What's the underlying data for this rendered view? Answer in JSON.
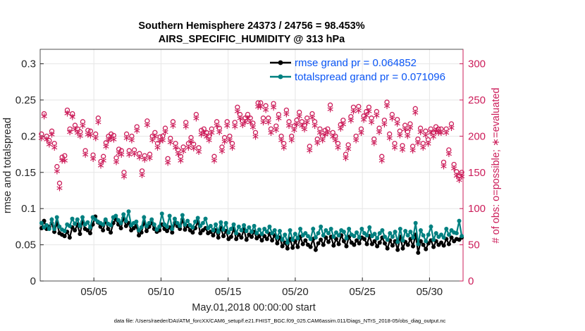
{
  "chart_data": {
    "type": "line",
    "title": "Southern Hemisphere 24373 / 24756 = 98.453%",
    "subtitle": "AIRS_SPECIFIC_HUMIDITY @ 313 hPa",
    "xlabel": "May.01,2018 00:00:00 start",
    "ylabel_left": "rmse and totalspread",
    "ylabel_right": "# of obs: o=possible; ∗=evaluated",
    "footnote": "data file: /Users/raeder/DAI/ATM_forcXX/CAM6_setup/f.e21.FHIST_BGC.f09_025.CAM6assim.011/Diags_NTrS_2018-05/obs_diag_output.nc",
    "xlim": [
      1.0,
      32.5
    ],
    "ylim_left": [
      0,
      0.32
    ],
    "ylim_right": [
      0,
      320
    ],
    "xticks": [
      5,
      10,
      15,
      20,
      25,
      30
    ],
    "xtick_labels": [
      "05/05",
      "05/10",
      "05/15",
      "05/20",
      "05/25",
      "05/30"
    ],
    "yticks_left": [
      0,
      0.05,
      0.1,
      0.15,
      0.2,
      0.25,
      0.3
    ],
    "ytick_labels_left": [
      "0",
      "0.05",
      "0.1",
      "0.15",
      "0.2",
      "0.25",
      "0.3"
    ],
    "yticks_right": [
      0,
      50,
      100,
      150,
      200,
      250,
      300
    ],
    "ytick_labels_right": [
      "0",
      "50",
      "100",
      "150",
      "200",
      "250",
      "300"
    ],
    "colors": {
      "rmse": "#000000",
      "spread": "#008080",
      "obs": "#cc1d5a",
      "legend_text": "#0b56f5",
      "grid": "#e6e6e6"
    },
    "grid": true,
    "legend_position": "top-right",
    "series": [
      {
        "name": "rmse grand pr = 0.064852",
        "style": "line-marker",
        "values": [
          0.073,
          0.083,
          0.072,
          0.075,
          0.08,
          0.068,
          0.08,
          0.066,
          0.064,
          0.062,
          0.068,
          0.06,
          0.074,
          0.07,
          0.078,
          0.065,
          0.082,
          0.072,
          0.07,
          0.066,
          0.078,
          0.089,
          0.081,
          0.075,
          0.07,
          0.083,
          0.072,
          0.067,
          0.08,
          0.085,
          0.078,
          0.073,
          0.087,
          0.076,
          0.08,
          0.07,
          0.073,
          0.076,
          0.063,
          0.067,
          0.081,
          0.069,
          0.075,
          0.08,
          0.072,
          0.068,
          0.07,
          0.078,
          0.072,
          0.069,
          0.074,
          0.067,
          0.08,
          0.076,
          0.072,
          0.085,
          0.071,
          0.076,
          0.07,
          0.067,
          0.073,
          0.082,
          0.066,
          0.07,
          0.073,
          0.066,
          0.068,
          0.063,
          0.07,
          0.06,
          0.073,
          0.062,
          0.069,
          0.058,
          0.061,
          0.072,
          0.058,
          0.064,
          0.06,
          0.071,
          0.057,
          0.064,
          0.061,
          0.068,
          0.059,
          0.062,
          0.056,
          0.062,
          0.058,
          0.065,
          0.056,
          0.063,
          0.052,
          0.06,
          0.048,
          0.053,
          0.045,
          0.058,
          0.046,
          0.055,
          0.047,
          0.061,
          0.051,
          0.056,
          0.05,
          0.047,
          0.058,
          0.043,
          0.052,
          0.057,
          0.05,
          0.06,
          0.054,
          0.061,
          0.049,
          0.058,
          0.051,
          0.063,
          0.055,
          0.048,
          0.061,
          0.053,
          0.05,
          0.056,
          0.052,
          0.06,
          0.058,
          0.051,
          0.062,
          0.051,
          0.055,
          0.048,
          0.053,
          0.06,
          0.052,
          0.045,
          0.056,
          0.049,
          0.055,
          0.043,
          0.061,
          0.045,
          0.054,
          0.05,
          0.058,
          0.048,
          0.064,
          0.039,
          0.055,
          0.05,
          0.044,
          0.052,
          0.056,
          0.047,
          0.055,
          0.05,
          0.053,
          0.049,
          0.058,
          0.051,
          0.06,
          0.055,
          0.058,
          0.057,
          0.06
        ]
      },
      {
        "name": "totalspread grand pr = 0.071096",
        "style": "line-marker",
        "values": [
          0.08,
          0.074,
          0.077,
          0.072,
          0.085,
          0.072,
          0.088,
          0.075,
          0.071,
          0.069,
          0.078,
          0.076,
          0.086,
          0.079,
          0.085,
          0.076,
          0.088,
          0.078,
          0.081,
          0.074,
          0.088,
          0.085,
          0.082,
          0.08,
          0.078,
          0.085,
          0.079,
          0.077,
          0.088,
          0.09,
          0.084,
          0.08,
          0.092,
          0.083,
          0.096,
          0.077,
          0.08,
          0.082,
          0.07,
          0.074,
          0.088,
          0.076,
          0.08,
          0.085,
          0.078,
          0.071,
          0.075,
          0.093,
          0.078,
          0.075,
          0.09,
          0.072,
          0.086,
          0.08,
          0.076,
          0.091,
          0.078,
          0.083,
          0.077,
          0.074,
          0.082,
          0.087,
          0.076,
          0.08,
          0.086,
          0.073,
          0.076,
          0.07,
          0.078,
          0.068,
          0.081,
          0.071,
          0.08,
          0.067,
          0.072,
          0.078,
          0.066,
          0.075,
          0.07,
          0.077,
          0.069,
          0.074,
          0.068,
          0.076,
          0.066,
          0.071,
          0.065,
          0.072,
          0.068,
          0.075,
          0.066,
          0.07,
          0.06,
          0.069,
          0.057,
          0.064,
          0.053,
          0.07,
          0.057,
          0.065,
          0.059,
          0.072,
          0.063,
          0.066,
          0.062,
          0.058,
          0.072,
          0.06,
          0.066,
          0.075,
          0.063,
          0.07,
          0.066,
          0.072,
          0.061,
          0.067,
          0.063,
          0.07,
          0.068,
          0.059,
          0.072,
          0.064,
          0.062,
          0.067,
          0.06,
          0.072,
          0.066,
          0.063,
          0.074,
          0.062,
          0.065,
          0.059,
          0.066,
          0.07,
          0.061,
          0.057,
          0.066,
          0.061,
          0.068,
          0.054,
          0.072,
          0.056,
          0.069,
          0.063,
          0.068,
          0.06,
          0.08,
          0.051,
          0.07,
          0.063,
          0.055,
          0.064,
          0.075,
          0.057,
          0.066,
          0.061,
          0.064,
          0.06,
          0.072,
          0.064,
          0.07,
          0.067,
          0.066,
          0.083,
          0.062
        ]
      }
    ],
    "obs_possible": [
      203,
      231,
      200,
      194,
      207,
      190,
      158,
      135,
      171,
      173,
      236,
      210,
      231,
      215,
      210,
      206,
      220,
      180,
      208,
      207,
      174,
      203,
      225,
      165,
      172,
      191,
      200,
      203,
      201,
      170,
      182,
      180,
      150,
      203,
      180,
      200,
      181,
      213,
      176,
      152,
      173,
      221,
      175,
      200,
      205,
      190,
      199,
      200,
      211,
      169,
      197,
      220,
      190,
      181,
      172,
      185,
      219,
      190,
      198,
      189,
      230,
      184,
      208,
      210,
      205,
      200,
      210,
      172,
      220,
      211,
      185,
      198,
      220,
      200,
      190,
      219,
      240,
      230,
      221,
      225,
      230,
      225,
      218,
      205,
      246,
      246,
      225,
      242,
      225,
      210,
      245,
      214,
      230,
      200,
      190,
      236,
      220,
      200,
      214,
      222,
      233,
      220,
      215,
      225,
      186,
      231,
      220,
      196,
      210,
      200,
      208,
      210,
      243,
      205,
      200,
      190,
      216,
      222,
      175,
      188,
      227,
      240,
      200,
      241,
      210,
      228,
      234,
      240,
      225,
      196,
      234,
      211,
      172,
      222,
      247,
      203,
      230,
      190,
      223,
      207,
      187,
      215,
      206,
      217,
      186,
      238,
      196,
      211,
      190,
      207,
      195,
      210,
      205,
      213,
      210,
      210,
      164,
      210,
      181,
      217,
      161,
      151,
      145,
      150
    ],
    "obs_evaluated": [
      199,
      229,
      197,
      190,
      204,
      186,
      153,
      130,
      168,
      168,
      233,
      207,
      228,
      211,
      206,
      202,
      216,
      176,
      204,
      203,
      170,
      199,
      221,
      161,
      168,
      187,
      196,
      199,
      197,
      166,
      178,
      176,
      146,
      199,
      176,
      196,
      177,
      209,
      172,
      148,
      169,
      217,
      171,
      196,
      201,
      186,
      195,
      196,
      207,
      165,
      193,
      216,
      186,
      177,
      168,
      181,
      215,
      186,
      194,
      185,
      226,
      180,
      204,
      206,
      201,
      196,
      206,
      168,
      216,
      207,
      181,
      194,
      216,
      196,
      186,
      215,
      236,
      226,
      217,
      221,
      226,
      221,
      214,
      201,
      242,
      242,
      221,
      238,
      221,
      206,
      241,
      210,
      226,
      196,
      186,
      232,
      216,
      196,
      210,
      218,
      229,
      216,
      211,
      221,
      182,
      227,
      216,
      192,
      206,
      196,
      204,
      206,
      239,
      201,
      196,
      186,
      212,
      218,
      171,
      184,
      223,
      236,
      196,
      237,
      206,
      224,
      230,
      236,
      221,
      192,
      230,
      207,
      168,
      218,
      243,
      199,
      226,
      186,
      219,
      203,
      183,
      211,
      202,
      213,
      182,
      234,
      192,
      207,
      186,
      203,
      191,
      206,
      201,
      209,
      206,
      206,
      160,
      206,
      177,
      213,
      157,
      147,
      141,
      146
    ]
  }
}
